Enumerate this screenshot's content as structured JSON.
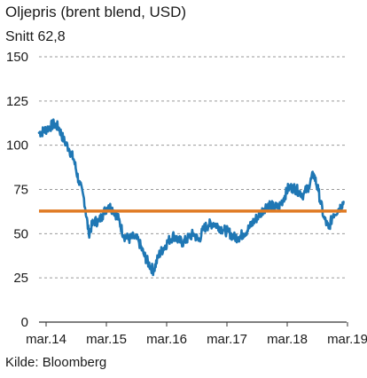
{
  "chart_data": {
    "type": "line",
    "title": "Oljepris (brent blend, USD)",
    "subtitle": "Snitt 62,8",
    "source": "Kilde: Bloomberg",
    "ylim": [
      0,
      150
    ],
    "y_ticks": [
      "0",
      "25",
      "50",
      "75",
      "100",
      "125",
      "150"
    ],
    "y_tick_values": [
      0,
      25,
      50,
      75,
      100,
      125,
      150
    ],
    "x_ticks": [
      "mar.14",
      "mar.15",
      "mar.16",
      "mar.17",
      "mar.18",
      "mar.19"
    ],
    "xlim": [
      2014.17,
      2019.3
    ],
    "grid": true,
    "average_line": {
      "value": 62.8,
      "color": "#e07b24"
    },
    "series": [
      {
        "color": "#1f77b4",
        "x": [
          2014.17,
          2014.25,
          2014.33,
          2014.42,
          2014.5,
          2014.58,
          2014.67,
          2014.75,
          2014.83,
          2014.92,
          2015.0,
          2015.08,
          2015.17,
          2015.25,
          2015.33,
          2015.42,
          2015.5,
          2015.58,
          2015.67,
          2015.75,
          2015.83,
          2015.92,
          2016.0,
          2016.08,
          2016.17,
          2016.25,
          2016.33,
          2016.42,
          2016.5,
          2016.58,
          2016.67,
          2016.75,
          2016.83,
          2016.92,
          2017.0,
          2017.08,
          2017.17,
          2017.25,
          2017.33,
          2017.42,
          2017.5,
          2017.58,
          2017.67,
          2017.75,
          2017.83,
          2017.92,
          2018.0,
          2018.08,
          2018.17,
          2018.25,
          2018.33,
          2018.42,
          2018.5,
          2018.58,
          2018.67,
          2018.75,
          2018.83,
          2018.92,
          2019.0,
          2019.08,
          2019.17,
          2019.25
        ],
        "y": [
          107,
          108,
          110,
          112,
          110,
          103,
          98,
          92,
          80,
          70,
          50,
          57,
          57,
          62,
          66,
          63,
          58,
          49,
          47,
          48,
          46,
          38,
          33,
          29,
          38,
          42,
          46,
          49,
          46,
          45,
          48,
          50,
          46,
          53,
          55,
          56,
          54,
          52,
          51,
          48,
          48,
          50,
          53,
          57,
          60,
          64,
          67,
          65,
          65,
          70,
          76,
          76,
          74,
          72,
          77,
          84,
          74,
          59,
          53,
          61,
          64,
          68
        ]
      }
    ]
  }
}
